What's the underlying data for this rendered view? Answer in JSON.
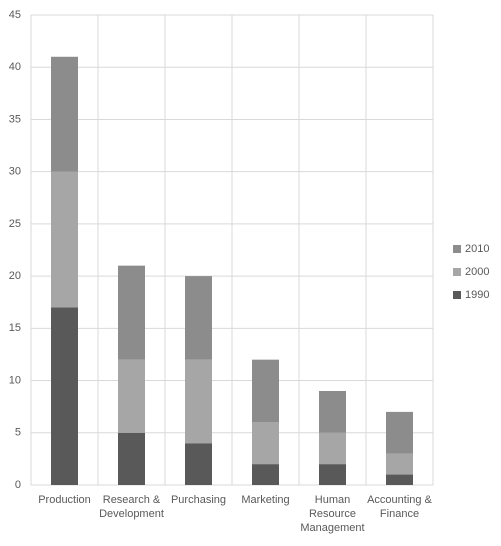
{
  "chart_data": {
    "type": "stacked_bar",
    "categories": [
      "Production",
      "Research & Development",
      "Purchasing",
      "Marketing",
      "Human Resource Management",
      "Accounting & Finance"
    ],
    "series": [
      {
        "name": "1990",
        "color": "#595959",
        "values": [
          17,
          5,
          4,
          2,
          2,
          1
        ]
      },
      {
        "name": "2000",
        "color": "#a6a6a6",
        "values": [
          13,
          7,
          8,
          4,
          3,
          2
        ]
      },
      {
        "name": "2010",
        "color": "#8c8c8c",
        "values": [
          11,
          9,
          8,
          6,
          4,
          4
        ]
      }
    ],
    "ylim": [
      0,
      45
    ],
    "yticks": [
      0,
      5,
      10,
      15,
      20,
      25,
      30,
      35,
      40,
      45
    ],
    "grid": true,
    "legend": "right"
  }
}
